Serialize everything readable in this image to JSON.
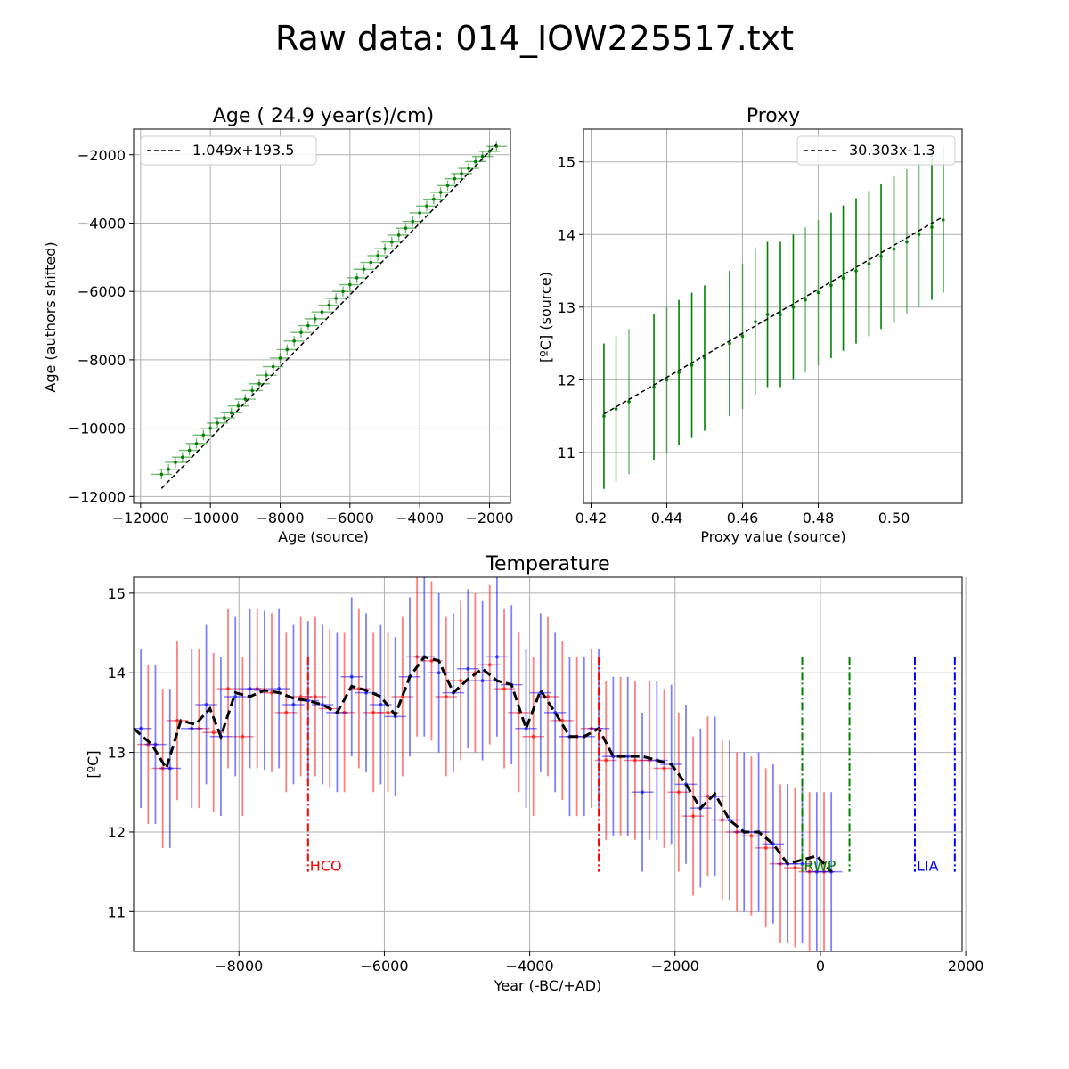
{
  "suptitle": "Raw data: 014_IOW225517.txt",
  "chart_data": [
    {
      "id": "age",
      "type": "scatter",
      "title": "Age ( 24.9 year(s)/cm)",
      "xlabel": "Age (source)",
      "ylabel": "Age (authors shifted)",
      "xlim": [
        -12200,
        -1400
      ],
      "ylim": [
        -12200,
        -1250
      ],
      "xticks": [
        -12000,
        -10000,
        -8000,
        -6000,
        -4000,
        -2000
      ],
      "yticks": [
        -12000,
        -10000,
        -8000,
        -6000,
        -4000,
        -2000
      ],
      "grid": true,
      "legend_position": "upper-left",
      "fit": {
        "label": "1.049x+193.5",
        "slope": 1.049,
        "intercept": 193.5,
        "x_range": [
          -11400,
          -1800
        ]
      },
      "series_color": "#008000",
      "x_err": 300,
      "y_err": 150,
      "x": [
        -11400,
        -11200,
        -11000,
        -10800,
        -10600,
        -10400,
        -10200,
        -10000,
        -9800,
        -9600,
        -9400,
        -9200,
        -9000,
        -8800,
        -8600,
        -8400,
        -8200,
        -8000,
        -7800,
        -7600,
        -7400,
        -7200,
        -7000,
        -6800,
        -6600,
        -6400,
        -6200,
        -6000,
        -5800,
        -5600,
        -5400,
        -5200,
        -5000,
        -4800,
        -4600,
        -4400,
        -4200,
        -4000,
        -3800,
        -3600,
        -3400,
        -3200,
        -3000,
        -2800,
        -2600,
        -2400,
        -2200,
        -2000,
        -1800
      ],
      "y": [
        -11350,
        -11200,
        -11000,
        -10850,
        -10650,
        -10450,
        -10200,
        -10000,
        -9850,
        -9700,
        -9550,
        -9350,
        -9150,
        -8900,
        -8700,
        -8450,
        -8200,
        -7950,
        -7700,
        -7450,
        -7200,
        -7000,
        -6800,
        -6600,
        -6400,
        -6200,
        -6000,
        -5800,
        -5600,
        -5350,
        -5150,
        -4950,
        -4750,
        -4550,
        -4350,
        -4150,
        -3950,
        -3700,
        -3500,
        -3300,
        -3100,
        -2900,
        -2700,
        -2550,
        -2400,
        -2200,
        -2050,
        -1900,
        -1750
      ]
    },
    {
      "id": "proxy",
      "type": "scatter",
      "title": "Proxy",
      "xlabel": "Proxy value (source)",
      "ylabel": "[ºC] (source)",
      "xlim": [
        0.418,
        0.518
      ],
      "ylim": [
        10.3,
        15.45
      ],
      "xticks": [
        0.42,
        0.44,
        0.46,
        0.48,
        0.5
      ],
      "yticks": [
        11,
        12,
        13,
        14,
        15
      ],
      "xtick_labels": [
        "0.42",
        "0.44",
        "0.46",
        "0.48",
        "0.50"
      ],
      "grid": true,
      "legend_position": "upper-right",
      "fit": {
        "label": "30.303x-1.3",
        "slope": 30.303,
        "intercept": -1.3,
        "x_range": [
          0.4234,
          0.513
        ]
      },
      "series_color": "#008000",
      "y_err": 1.0,
      "x": [
        0.4234,
        0.4266,
        0.43,
        0.4366,
        0.44,
        0.4432,
        0.4466,
        0.45,
        0.4566,
        0.46,
        0.4634,
        0.4666,
        0.47,
        0.4734,
        0.4766,
        0.48,
        0.4834,
        0.4866,
        0.49,
        0.4934,
        0.4966,
        0.5,
        0.5034,
        0.5066,
        0.51,
        0.513
      ],
      "y": [
        11.5,
        11.6,
        11.7,
        11.9,
        12.0,
        12.1,
        12.2,
        12.3,
        12.5,
        12.6,
        12.8,
        12.9,
        12.9,
        13.0,
        13.1,
        13.2,
        13.3,
        13.4,
        13.5,
        13.6,
        13.7,
        13.8,
        13.9,
        14.0,
        14.1,
        14.2
      ],
      "alpha": [
        1,
        0.5,
        0.5,
        1,
        0.5,
        1,
        1,
        1,
        1,
        0.5,
        0.5,
        1,
        1,
        1,
        0.5,
        0.5,
        1,
        1,
        1,
        1,
        1,
        1,
        0.5,
        0.5,
        1,
        1
      ]
    },
    {
      "id": "temperature",
      "type": "line",
      "title": "Temperature",
      "xlabel": "Year (-BC/+AD)",
      "ylabel": "[ºC]",
      "xlim": [
        -9450,
        1950
      ],
      "ylim": [
        10.5,
        15.2
      ],
      "xticks": [
        -8000,
        -6000,
        -4000,
        -2000,
        0,
        2000
      ],
      "yticks": [
        11,
        12,
        13,
        14,
        15
      ],
      "grid": true,
      "y_err": 1.0,
      "mean_color": "#000000",
      "mean_x": [
        -9450,
        -9200,
        -9000,
        -8800,
        -8600,
        -8400,
        -8250,
        -8050,
        -7850,
        -7650,
        -7450,
        -7250,
        -7050,
        -6850,
        -6650,
        -6450,
        -6250,
        -6050,
        -5850,
        -5650,
        -5450,
        -5250,
        -5050,
        -4850,
        -4650,
        -4450,
        -4250,
        -4050,
        -3850,
        -3650,
        -3450,
        -3250,
        -3050,
        -2850,
        -2650,
        -2450,
        -2250,
        -2050,
        -1850,
        -1650,
        -1450,
        -1250,
        -1050,
        -850,
        -650,
        -450,
        -250,
        -50,
        150
      ],
      "mean_y": [
        13.3,
        13.1,
        12.8,
        13.4,
        13.35,
        13.55,
        13.2,
        13.75,
        13.7,
        13.78,
        13.75,
        13.68,
        13.65,
        13.6,
        13.5,
        13.83,
        13.78,
        13.7,
        13.47,
        13.95,
        14.2,
        14.15,
        13.75,
        13.92,
        14.05,
        13.9,
        13.85,
        13.3,
        13.78,
        13.5,
        13.2,
        13.2,
        13.3,
        12.95,
        12.95,
        12.95,
        12.9,
        12.85,
        12.6,
        12.3,
        12.48,
        12.15,
        12.0,
        12.0,
        11.85,
        11.6,
        11.65,
        11.7,
        11.5
      ],
      "red_x": [
        -9250,
        -9050,
        -8850,
        -8550,
        -8350,
        -8150,
        -7950,
        -7750,
        -7550,
        -7350,
        -7150,
        -6950,
        -6750,
        -6550,
        -6350,
        -6150,
        -5950,
        -5750,
        -5550,
        -5350,
        -5150,
        -4950,
        -4750,
        -4550,
        -4350,
        -4150,
        -3950,
        -3750,
        -3550,
        -3350,
        -3150,
        -2950,
        -2750,
        -2550,
        -2350,
        -2150,
        -1950,
        -1750,
        -1550,
        -1350,
        -1150,
        -950,
        -750,
        -550,
        -350,
        -150,
        50
      ],
      "red_y": [
        13.1,
        12.8,
        13.4,
        13.3,
        13.25,
        13.8,
        13.2,
        13.8,
        13.75,
        13.5,
        13.7,
        13.7,
        13.55,
        13.5,
        13.8,
        13.5,
        13.5,
        13.7,
        14.2,
        14.15,
        13.7,
        13.9,
        14.0,
        14.1,
        13.8,
        13.5,
        13.2,
        13.7,
        13.4,
        13.2,
        13.3,
        12.9,
        12.95,
        12.9,
        12.9,
        12.8,
        12.5,
        12.2,
        12.45,
        12.15,
        12.0,
        11.95,
        11.8,
        11.6,
        11.55,
        11.5,
        11.5
      ],
      "blue_x": [
        -9350,
        -9150,
        -8950,
        -8650,
        -8450,
        -8250,
        -8050,
        -7850,
        -7650,
        -7450,
        -7250,
        -7050,
        -6850,
        -6650,
        -6450,
        -6250,
        -6050,
        -5850,
        -5650,
        -5450,
        -5250,
        -5050,
        -4850,
        -4650,
        -4450,
        -4250,
        -4050,
        -3850,
        -3650,
        -3450,
        -3250,
        -3050,
        -2850,
        -2650,
        -2450,
        -2250,
        -2050,
        -1850,
        -1650,
        -1450,
        -1250,
        -1050,
        -850,
        -650,
        -450,
        -250,
        -50,
        150
      ],
      "blue_y": [
        13.3,
        13.1,
        12.8,
        13.3,
        13.6,
        13.2,
        13.7,
        13.8,
        13.78,
        13.8,
        13.6,
        13.65,
        13.6,
        13.5,
        13.95,
        13.75,
        13.6,
        13.45,
        13.95,
        14.2,
        14.0,
        13.75,
        14.05,
        13.9,
        14.2,
        13.85,
        13.3,
        13.75,
        13.5,
        13.2,
        13.2,
        13.3,
        12.95,
        12.95,
        12.5,
        12.9,
        12.85,
        12.6,
        12.3,
        12.45,
        12.15,
        12.0,
        12.0,
        11.85,
        11.6,
        11.6,
        11.5,
        11.5
      ],
      "periods": [
        {
          "label": "HCO",
          "x_start": -7050,
          "x_end": -3050,
          "color": "#ff0000"
        },
        {
          "label": "RWP",
          "x_start": -250,
          "x_end": 400,
          "color": "#008000"
        },
        {
          "label": "LIA",
          "x_start": 1300,
          "x_end": 1850,
          "color": "#0000ff"
        }
      ],
      "period_y_range": [
        11.5,
        14.2
      ]
    }
  ]
}
